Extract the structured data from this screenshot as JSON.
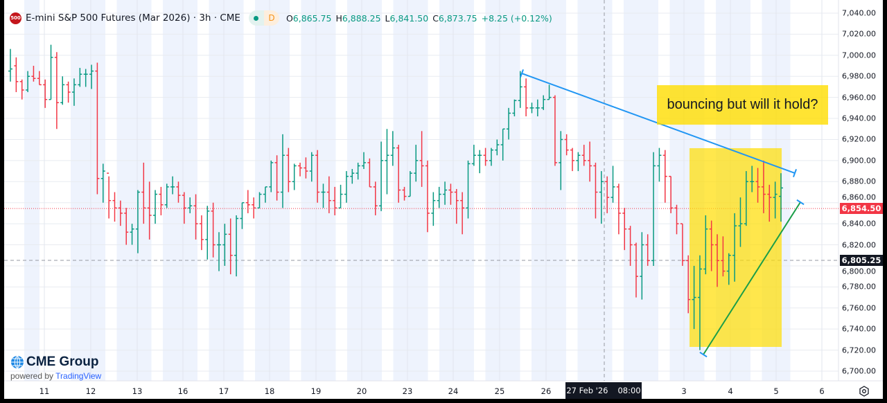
{
  "header": {
    "symbol_badge": "500",
    "title": "E-mini S&P 500 Futures (Mar 2026) · 3h · CME",
    "status_letter": "D",
    "ohlc": [
      {
        "key": "O",
        "value": "6,865.75"
      },
      {
        "key": "H",
        "value": "6,888.25"
      },
      {
        "key": "L",
        "value": "6,841.50"
      },
      {
        "key": "C",
        "value": "6,873.75"
      }
    ],
    "change": "+8.25 (+0.12%)"
  },
  "annotation": {
    "text": "bouncing but will it hold?"
  },
  "price_axis": {
    "labels": [
      "7,040.00",
      "7,020.00",
      "7,000.00",
      "6,980.00",
      "6,960.00",
      "6,940.00",
      "6,920.00",
      "6,900.00",
      "6,880.00",
      "6,860.00",
      "6,840.00",
      "6,820.00",
      "6,800.00",
      "6,780.00",
      "6,760.00",
      "6,740.00",
      "6,720.00",
      "6,700.00"
    ],
    "last_price": "6,854.50",
    "crosshair_price": "6,805.25"
  },
  "time_axis": {
    "labels": [
      "11",
      "12",
      "13",
      "16",
      "17",
      "18",
      "19",
      "20",
      "23",
      "24",
      "25",
      "26",
      "3",
      "4",
      "5",
      "6"
    ],
    "crosshair_date": "27 Feb '26",
    "crosshair_time": "08:00"
  },
  "branding": {
    "logo": "CME Group",
    "powered_by": "powered by",
    "platform": "TradingView"
  },
  "colors": {
    "up": "#089981",
    "down": "#f23645",
    "trendline": "#2196f3",
    "highlight": "#ffdd00",
    "session_band": "#eef3fd"
  },
  "chart_data": {
    "type": "ohlc",
    "interval": "3h",
    "ylim": [
      6700,
      7040
    ],
    "grid": true,
    "last_price": 6854.5,
    "crosshair_price": 6805.25,
    "bars": [
      [
        6985,
        7006,
        6975,
        6987
      ],
      [
        6990,
        6998,
        6965,
        6975
      ],
      [
        6975,
        6977,
        6958,
        6967
      ],
      [
        6967,
        6985,
        6965,
        6980
      ],
      [
        6980,
        6990,
        6975,
        6978
      ],
      [
        6978,
        6985,
        6972,
        6972
      ],
      [
        6972,
        6977,
        6950,
        6958
      ],
      [
        6958,
        7010,
        6958,
        6998
      ],
      [
        6998,
        7003,
        6930,
        6955
      ],
      [
        6955,
        6980,
        6953,
        6972
      ],
      [
        6972,
        6975,
        6955,
        6965
      ],
      [
        6965,
        6978,
        6952,
        6972
      ],
      [
        6972,
        6988,
        6970,
        6982
      ],
      [
        6982,
        6987,
        6970,
        6982
      ],
      [
        6982,
        6991,
        6968,
        6985
      ],
      [
        6985,
        6993,
        6868,
        6883
      ],
      [
        6883,
        6897,
        6860,
        6890
      ],
      [
        6888,
        6885,
        6845,
        6862
      ],
      [
        6862,
        6870,
        6842,
        6855
      ],
      [
        6855,
        6862,
        6838,
        6850
      ],
      [
        6850,
        6855,
        6820,
        6832
      ],
      [
        6832,
        6840,
        6820,
        6835
      ],
      [
        6835,
        6872,
        6812,
        6870
      ],
      [
        6870,
        6898,
        6840,
        6855
      ],
      [
        6855,
        6880,
        6825,
        6848
      ],
      [
        6848,
        6872,
        6840,
        6868
      ],
      [
        6868,
        6875,
        6848,
        6858
      ],
      [
        6858,
        6878,
        6855,
        6875
      ],
      [
        6875,
        6885,
        6868,
        6875
      ],
      [
        6875,
        6880,
        6860,
        6867
      ],
      [
        6867,
        6870,
        6840,
        6855
      ],
      [
        6855,
        6865,
        6850,
        6857
      ],
      [
        6857,
        6868,
        6825,
        6840
      ],
      [
        6840,
        6848,
        6815,
        6825
      ],
      [
        6825,
        6857,
        6806,
        6852
      ],
      [
        6852,
        6860,
        6808,
        6820
      ],
      [
        6820,
        6832,
        6795,
        6820
      ],
      [
        6820,
        6840,
        6800,
        6830
      ],
      [
        6830,
        6845,
        6792,
        6810
      ],
      [
        6810,
        6848,
        6790,
        6845
      ],
      [
        6845,
        6860,
        6835,
        6860
      ],
      [
        6860,
        6872,
        6850,
        6858
      ],
      [
        6858,
        6865,
        6845,
        6855
      ],
      [
        6855,
        6870,
        6855,
        6868
      ],
      [
        6868,
        6875,
        6860,
        6875
      ],
      [
        6875,
        6900,
        6870,
        6898
      ],
      [
        6898,
        6905,
        6862,
        6870
      ],
      [
        6870,
        6925,
        6855,
        6905
      ],
      [
        6905,
        6912,
        6870,
        6880
      ],
      [
        6880,
        6897,
        6872,
        6895
      ],
      [
        6895,
        6898,
        6885,
        6893
      ],
      [
        6893,
        6903,
        6883,
        6890
      ],
      [
        6890,
        6908,
        6880,
        6905
      ],
      [
        6905,
        6910,
        6860,
        6870
      ],
      [
        6870,
        6878,
        6855,
        6870
      ],
      [
        6870,
        6885,
        6850,
        6862
      ],
      [
        6862,
        6875,
        6848,
        6855
      ],
      [
        6855,
        6877,
        6855,
        6868
      ],
      [
        6868,
        6890,
        6860,
        6885
      ],
      [
        6885,
        6892,
        6878,
        6888
      ],
      [
        6888,
        6898,
        6882,
        6895
      ],
      [
        6895,
        6908,
        6892,
        6898
      ],
      [
        6898,
        6902,
        6875,
        6875
      ],
      [
        6875,
        6880,
        6848,
        6857
      ],
      [
        6857,
        6918,
        6852,
        6900
      ],
      [
        6900,
        6930,
        6868,
        6905
      ],
      [
        6905,
        6928,
        6895,
        6912
      ],
      [
        6912,
        6915,
        6860,
        6872
      ],
      [
        6872,
        6875,
        6862,
        6866
      ],
      [
        6866,
        6890,
        6866,
        6888
      ],
      [
        6888,
        6915,
        6880,
        6900
      ],
      [
        6900,
        6928,
        6875,
        6895
      ],
      [
        6895,
        6900,
        6832,
        6850
      ],
      [
        6850,
        6870,
        6838,
        6862
      ],
      [
        6862,
        6875,
        6855,
        6868
      ],
      [
        6868,
        6880,
        6858,
        6872
      ],
      [
        6872,
        6878,
        6858,
        6870
      ],
      [
        6870,
        6873,
        6840,
        6862
      ],
      [
        6862,
        6870,
        6830,
        6855
      ],
      [
        6855,
        6900,
        6845,
        6897
      ],
      [
        6897,
        6915,
        6895,
        6905
      ],
      [
        6905,
        6910,
        6888,
        6905
      ],
      [
        6905,
        6912,
        6895,
        6900
      ],
      [
        6900,
        6912,
        6895,
        6910
      ],
      [
        6910,
        6920,
        6905,
        6915
      ],
      [
        6915,
        6930,
        6900,
        6930
      ],
      [
        6930,
        6950,
        6920,
        6945
      ],
      [
        6945,
        6958,
        6942,
        6957
      ],
      [
        6957,
        6985,
        6950,
        6970
      ],
      [
        6970,
        6978,
        6942,
        6950
      ],
      [
        6950,
        6955,
        6945,
        6950
      ],
      [
        6950,
        6958,
        6942,
        6950
      ],
      [
        6950,
        6962,
        6948,
        6958
      ],
      [
        6958,
        6972,
        6958,
        6960
      ],
      [
        6960,
        6962,
        6895,
        6898
      ],
      [
        6898,
        6928,
        6872,
        6920
      ],
      [
        6920,
        6925,
        6905,
        6910
      ],
      [
        6910,
        6912,
        6890,
        6900
      ],
      [
        6900,
        6908,
        6890,
        6905
      ],
      [
        6905,
        6915,
        6895,
        6900
      ],
      [
        6900,
        6918,
        6880,
        6895
      ],
      [
        6895,
        6898,
        6845,
        6870
      ],
      [
        6870,
        6890,
        6840,
        6880
      ],
      [
        6880,
        6885,
        6850,
        6865
      ],
      [
        6865,
        6895,
        6860,
        6875
      ],
      [
        6875,
        6878,
        6830,
        6850
      ],
      [
        6850,
        6855,
        6815,
        6835
      ],
      [
        6835,
        6838,
        6800,
        6820
      ],
      [
        6820,
        6822,
        6770,
        6790
      ],
      [
        6790,
        6832,
        6768,
        6820
      ],
      [
        6820,
        6830,
        6800,
        6805
      ],
      [
        6805,
        6908,
        6800,
        6895
      ],
      [
        6895,
        6912,
        6880,
        6905
      ],
      [
        6905,
        6910,
        6860,
        6885
      ],
      [
        6885,
        6885,
        6850,
        6855
      ],
      [
        6855,
        6858,
        6830,
        6840
      ],
      [
        6840,
        6840,
        6800,
        6805
      ],
      [
        6805,
        6810,
        6755,
        6768
      ],
      [
        6768,
        6800,
        6740,
        6770
      ],
      [
        6770,
        6810,
        6720,
        6797
      ],
      [
        6797,
        6848,
        6792,
        6835
      ],
      [
        6835,
        6843,
        6795,
        6820
      ],
      [
        6820,
        6830,
        6780,
        6805
      ],
      [
        6805,
        6828,
        6790,
        6795
      ],
      [
        6795,
        6812,
        6782,
        6810
      ],
      [
        6810,
        6850,
        6785,
        6838
      ],
      [
        6838,
        6865,
        6818,
        6840
      ],
      [
        6840,
        6890,
        6838,
        6880
      ],
      [
        6880,
        6895,
        6870,
        6880
      ],
      [
        6880,
        6893,
        6860,
        6875
      ],
      [
        6875,
        6900,
        6850,
        6868
      ],
      [
        6868,
        6877,
        6842,
        6865
      ],
      [
        6865,
        6880,
        6845,
        6868
      ],
      [
        6866,
        6888,
        6842,
        6874
      ]
    ]
  }
}
